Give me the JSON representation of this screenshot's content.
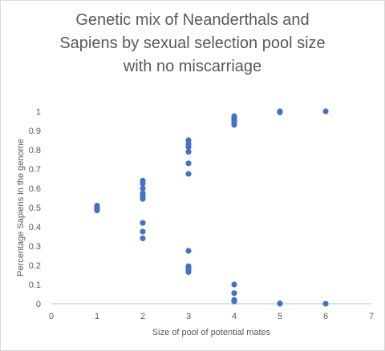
{
  "chart_data": {
    "type": "scatter",
    "title_lines": [
      "Genetic mix of Neanderthals and",
      "Sapiens by sexual selection pool size",
      "with no miscarriage"
    ],
    "xlabel": "Size of pool of potential mates",
    "ylabel": "Percentage Sapiens in the genome",
    "xlim": [
      0,
      7
    ],
    "ylim": [
      0,
      1
    ],
    "xticks": [
      0,
      1,
      2,
      3,
      4,
      5,
      6,
      7
    ],
    "yticks": [
      0,
      0.1,
      0.2,
      0.3,
      0.4,
      0.5,
      0.6,
      0.7,
      0.8,
      0.9,
      1
    ],
    "grid": false,
    "legend": "none",
    "marker_color": "#4472C4",
    "points": [
      [
        1,
        0.51
      ],
      [
        1,
        0.5
      ],
      [
        1,
        0.495
      ],
      [
        1,
        0.49
      ],
      [
        1,
        0.485
      ],
      [
        2,
        0.64
      ],
      [
        2,
        0.625
      ],
      [
        2,
        0.6
      ],
      [
        2,
        0.575
      ],
      [
        2,
        0.56
      ],
      [
        2,
        0.545
      ],
      [
        2,
        0.42
      ],
      [
        2,
        0.375
      ],
      [
        2,
        0.34
      ],
      [
        3,
        0.85
      ],
      [
        3,
        0.83
      ],
      [
        3,
        0.815
      ],
      [
        3,
        0.79
      ],
      [
        3,
        0.73
      ],
      [
        3,
        0.675
      ],
      [
        3,
        0.275
      ],
      [
        3,
        0.195
      ],
      [
        3,
        0.185
      ],
      [
        3,
        0.175
      ],
      [
        3,
        0.165
      ],
      [
        4,
        0.975
      ],
      [
        4,
        0.965
      ],
      [
        4,
        0.955
      ],
      [
        4,
        0.945
      ],
      [
        4,
        0.93
      ],
      [
        4,
        0.1
      ],
      [
        4,
        0.055
      ],
      [
        4,
        0.02
      ],
      [
        4,
        0.012
      ],
      [
        5,
        1.0
      ],
      [
        5,
        0.995
      ],
      [
        5,
        0.002
      ],
      [
        5,
        0.0
      ],
      [
        6,
        1.0
      ],
      [
        6,
        0.0
      ]
    ]
  }
}
